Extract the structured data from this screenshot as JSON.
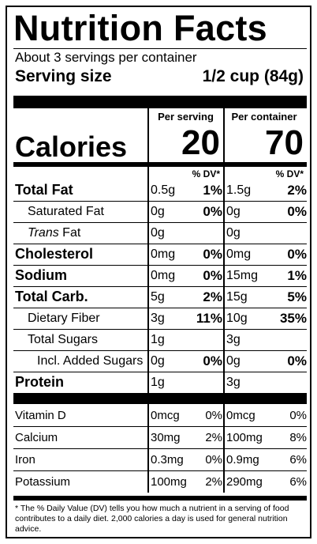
{
  "label": {
    "title": "Nutrition Facts",
    "servings_per_container": "About 3 servings per container",
    "serving_size_label": "Serving size",
    "serving_size_value": "1/2 cup (84g)",
    "per_serving": "Per serving",
    "per_container": "Per container",
    "calories_label": "Calories",
    "calories_serving": "20",
    "calories_container": "70",
    "dv_header": "% DV*",
    "footnote": "* The % Daily Value (DV) tells you how much a nutrient in a serving of food contributes to a daily diet. 2,000 calories a day is used for general nutrition advice."
  },
  "nutrients": [
    {
      "name": "Total Fat",
      "s_amt": "0.5g",
      "s_dv": "1%",
      "c_amt": "1.5g",
      "c_dv": "2%"
    },
    {
      "name": "Saturated Fat",
      "s_amt": "0g",
      "s_dv": "0%",
      "c_amt": "0g",
      "c_dv": "0%"
    },
    {
      "name_italic": "Trans",
      "name_rest": " Fat",
      "s_amt": "0g",
      "s_dv": "",
      "c_amt": "0g",
      "c_dv": ""
    },
    {
      "name": "Cholesterol",
      "s_amt": "0mg",
      "s_dv": "0%",
      "c_amt": "0mg",
      "c_dv": "0%"
    },
    {
      "name": "Sodium",
      "s_amt": "0mg",
      "s_dv": "0%",
      "c_amt": "15mg",
      "c_dv": "1%"
    },
    {
      "name": "Total Carb.",
      "s_amt": "5g",
      "s_dv": "2%",
      "c_amt": "15g",
      "c_dv": "5%"
    },
    {
      "name": "Dietary Fiber",
      "s_amt": "3g",
      "s_dv": "11%",
      "c_amt": "10g",
      "c_dv": "35%"
    },
    {
      "name": "Total Sugars",
      "s_amt": "1g",
      "s_dv": "",
      "c_amt": "3g",
      "c_dv": ""
    },
    {
      "name": "Incl. Added Sugars",
      "s_amt": "0g",
      "s_dv": "0%",
      "c_amt": "0g",
      "c_dv": "0%"
    },
    {
      "name": "Protein",
      "s_amt": "1g",
      "s_dv": "",
      "c_amt": "3g",
      "c_dv": ""
    }
  ],
  "vitamins": [
    {
      "name": "Vitamin D",
      "s_amt": "0mcg",
      "s_dv": "0%",
      "c_amt": "0mcg",
      "c_dv": "0%"
    },
    {
      "name": "Calcium",
      "s_amt": "30mg",
      "s_dv": "2%",
      "c_amt": "100mg",
      "c_dv": "8%"
    },
    {
      "name": "Iron",
      "s_amt": "0.3mg",
      "s_dv": "0%",
      "c_amt": "0.9mg",
      "c_dv": "6%"
    },
    {
      "name": "Potassium",
      "s_amt": "100mg",
      "s_dv": "2%",
      "c_amt": "290mg",
      "c_dv": "6%"
    }
  ]
}
